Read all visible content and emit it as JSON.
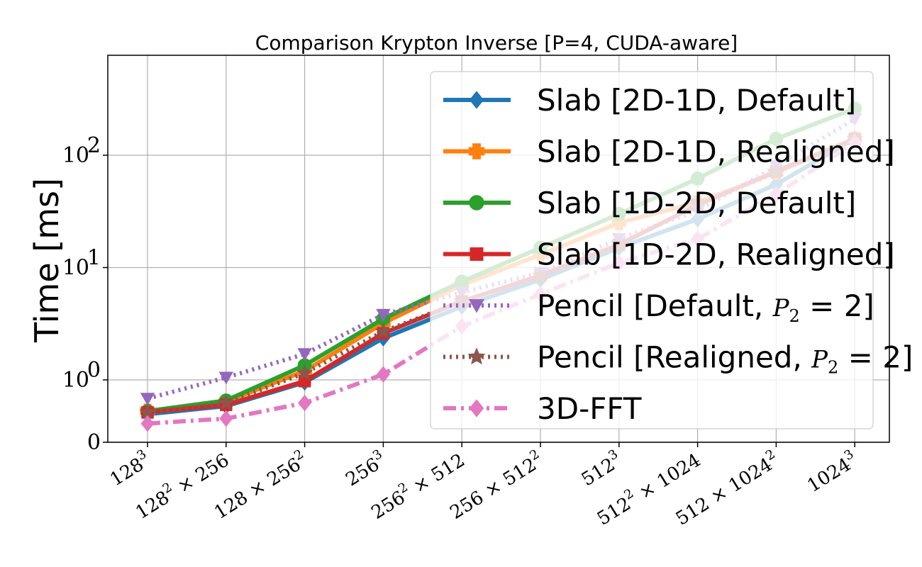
{
  "chart_data": {
    "type": "line",
    "title": "Comparison Krypton Inverse [P=4, CUDA-aware]",
    "ylabel": "Time [ms]",
    "xlabel": "",
    "yscale": "symlog",
    "ylim": [
      0,
      350
    ],
    "y_ticks": [
      {
        "value": 0,
        "base": "0",
        "exp": ""
      },
      {
        "value": 1,
        "base": "10",
        "exp": "0"
      },
      {
        "value": 10,
        "base": "10",
        "exp": "1"
      },
      {
        "value": 100,
        "base": "10",
        "exp": "2"
      }
    ],
    "grid": true,
    "legend_position": "upper-right",
    "categories": [
      {
        "base": "128",
        "exp": "3",
        "tail": ""
      },
      {
        "base": "128",
        "exp": "2",
        "tail": " × 256"
      },
      {
        "base": "128 × 256",
        "exp": "2",
        "tail": ""
      },
      {
        "base": "256",
        "exp": "3",
        "tail": ""
      },
      {
        "base": "256",
        "exp": "2",
        "tail": " × 512"
      },
      {
        "base": "256 × 512",
        "exp": "2",
        "tail": ""
      },
      {
        "base": "512",
        "exp": "3",
        "tail": ""
      },
      {
        "base": "512",
        "exp": "2",
        "tail": " × 1024"
      },
      {
        "base": "512 × 1024",
        "exp": "2",
        "tail": ""
      },
      {
        "base": "1024",
        "exp": "3",
        "tail": ""
      }
    ],
    "series": [
      {
        "name": "Slab [2D-1D, Default]",
        "color": "#1f77b4",
        "line": "solid",
        "marker": "diamond",
        "values": [
          0.45,
          0.58,
          0.96,
          2.35,
          4.5,
          7.8,
          15,
          27,
          55,
          140
        ]
      },
      {
        "name": "Slab [2D-1D, Realigned]",
        "color": "#ff7f0e",
        "line": "solid",
        "marker": "plus",
        "values": [
          0.5,
          0.65,
          1.2,
          3.2,
          7,
          13,
          25,
          38,
          70,
          140
        ]
      },
      {
        "name": "Slab [1D-2D, Default]",
        "color": "#2ca02c",
        "line": "solid",
        "marker": "circle",
        "values": [
          0.5,
          0.67,
          1.35,
          3.5,
          7.5,
          15,
          30,
          62,
          140,
          260
        ]
      },
      {
        "name": "Slab [1D-2D, Realigned]",
        "color": "#d62728",
        "line": "solid",
        "marker": "square",
        "values": [
          0.48,
          0.6,
          0.98,
          2.6,
          5,
          8.5,
          16,
          36,
          72,
          140
        ]
      },
      {
        "name": "Pencil [Default, P2 = 2]",
        "color": "#9467bd",
        "line": "dotted",
        "marker": "triangle-down",
        "values": [
          0.7,
          1.05,
          1.7,
          3.8,
          6,
          9,
          18,
          32,
          80,
          210
        ],
        "legend_prefix": "Pencil [Default, ",
        "legend_var": "P",
        "legend_sub": "2",
        "legend_suffix": " = 2]"
      },
      {
        "name": "Pencil [Realigned, P2 = 2]",
        "color": "#8c564b",
        "line": "dotted",
        "marker": "star",
        "values": [
          0.48,
          0.63,
          1.15,
          2.7,
          5,
          8.5,
          16,
          36,
          70,
          140
        ],
        "legend_prefix": "Pencil [Realigned, ",
        "legend_var": "P",
        "legend_sub": "2",
        "legend_suffix": " = 2]"
      },
      {
        "name": "3D-FFT",
        "color": "#e377c2",
        "line": "dashdot",
        "marker": "diamond",
        "values": [
          0.3,
          0.38,
          0.63,
          1.12,
          3,
          5.8,
          11,
          18,
          45,
          130
        ]
      }
    ]
  }
}
